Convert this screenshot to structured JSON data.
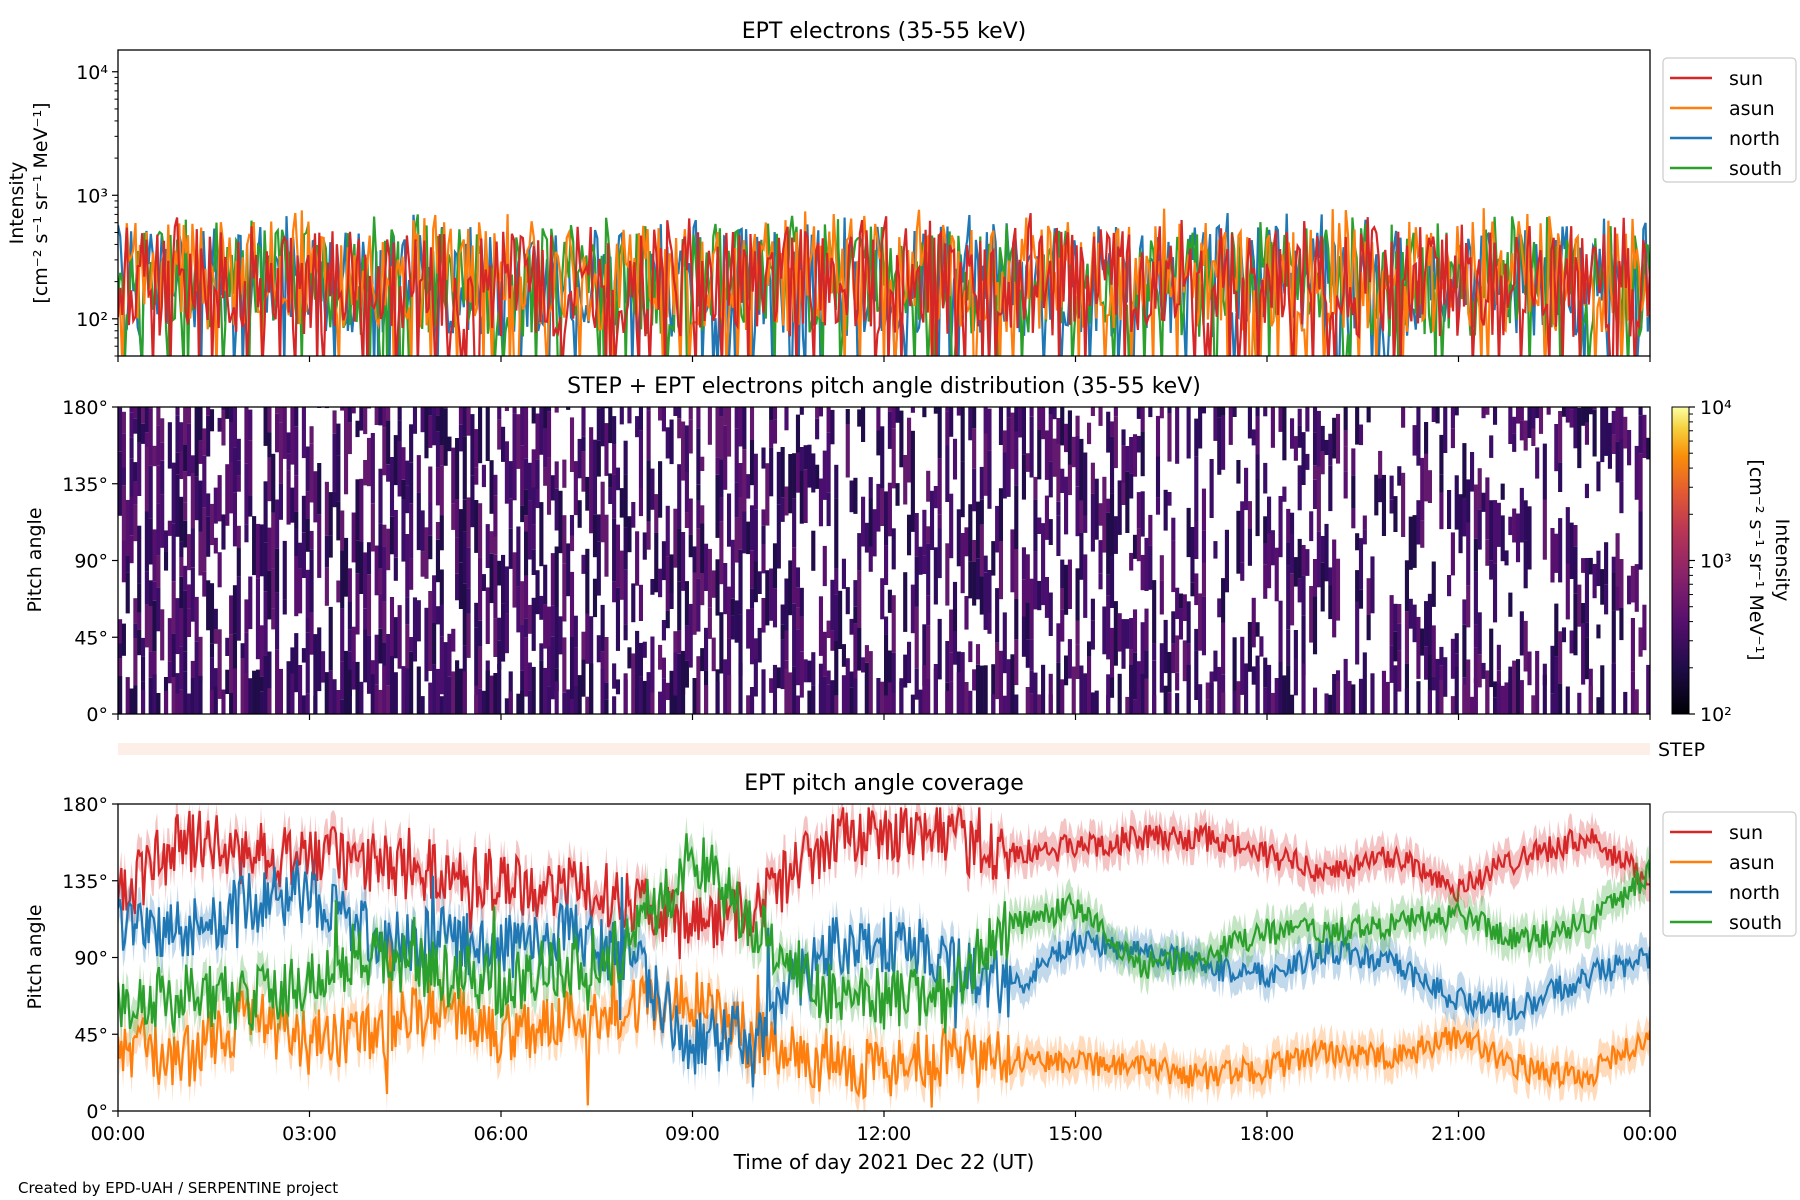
{
  "colors": {
    "sun": "#d62728",
    "asun": "#ff7f0e",
    "north": "#1f77b4",
    "south": "#2ca02c",
    "step_band": "#fdeee8"
  },
  "chart_data": [
    {
      "type": "line",
      "title": "EPT electrons (35-55 keV)",
      "ylabel_line1": "Intensity",
      "ylabel_line2": "[cm⁻² s⁻¹ sr⁻¹ MeV⁻¹]",
      "yscale": "log",
      "ylim": [
        50,
        15000
      ],
      "yticks": [
        "10²",
        "10³",
        "10⁴"
      ],
      "legend": [
        "sun",
        "asun",
        "north",
        "south"
      ],
      "legend_position": "upper right outside",
      "series": [
        {
          "name": "sun",
          "typical": 200,
          "max": 1000
        },
        {
          "name": "asun",
          "typical": 220,
          "max": 700
        },
        {
          "name": "north",
          "typical": 200,
          "max": 900
        },
        {
          "name": "south",
          "typical": 200,
          "max": 800
        }
      ],
      "grid": false
    },
    {
      "type": "heatmap",
      "title": "STEP + EPT electrons pitch angle distribution (35-55 keV)",
      "ylabel": "Pitch angle",
      "yticks": [
        "0°",
        "45°",
        "90°",
        "135°",
        "180°"
      ],
      "ylim": [
        0,
        180
      ],
      "colorbar": {
        "label_line1": "Intensity",
        "label_line2": "[cm⁻² s⁻¹ sr⁻¹ MeV⁻¹]",
        "ticks": [
          "10²",
          "10³",
          "10⁴"
        ],
        "range": [
          100,
          10000
        ],
        "scale": "log",
        "colormap": "inferno"
      },
      "typical_intensity": 250
    },
    {
      "type": "band",
      "label": "STEP"
    },
    {
      "type": "line",
      "title": "EPT pitch angle coverage",
      "ylabel": "Pitch angle",
      "yticks": [
        "0°",
        "45°",
        "90°",
        "135°",
        "180°"
      ],
      "ylim": [
        0,
        180
      ],
      "legend": [
        "sun",
        "asun",
        "north",
        "south"
      ],
      "legend_position": "upper right outside",
      "xticks": [
        "00:00",
        "03:00",
        "06:00",
        "09:00",
        "12:00",
        "15:00",
        "18:00",
        "21:00",
        "00:00"
      ],
      "xlabel": "Time of day 2021 Dec 22 (UT)",
      "series": [
        {
          "name": "sun",
          "x_hours": [
            0,
            1,
            2,
            3,
            4,
            5,
            6,
            7,
            8,
            9,
            10,
            11,
            12,
            13,
            14,
            15,
            16,
            17,
            18,
            19,
            20,
            21,
            22,
            23,
            24
          ],
          "values": [
            125,
            160,
            150,
            150,
            145,
            140,
            135,
            130,
            125,
            110,
            120,
            155,
            165,
            160,
            150,
            155,
            160,
            160,
            150,
            140,
            150,
            130,
            150,
            160,
            135
          ]
        },
        {
          "name": "asun",
          "x_hours": [
            0,
            1,
            2,
            3,
            4,
            5,
            6,
            7,
            8,
            9,
            10,
            11,
            12,
            13,
            14,
            15,
            16,
            17,
            18,
            19,
            20,
            21,
            22,
            23,
            24
          ],
          "values": [
            40,
            30,
            55,
            40,
            45,
            60,
            45,
            55,
            60,
            65,
            40,
            30,
            25,
            30,
            30,
            30,
            25,
            20,
            25,
            35,
            30,
            45,
            25,
            20,
            45
          ]
        },
        {
          "name": "north",
          "x_hours": [
            0,
            1,
            2,
            3,
            4,
            5,
            6,
            7,
            8,
            9,
            10,
            11,
            12,
            13,
            14,
            15,
            16,
            17,
            18,
            19,
            20,
            21,
            22,
            23,
            24
          ],
          "values": [
            110,
            105,
            120,
            130,
            100,
            100,
            95,
            105,
            90,
            40,
            45,
            95,
            100,
            90,
            70,
            100,
            95,
            85,
            80,
            95,
            85,
            65,
            60,
            80,
            90
          ]
        },
        {
          "name": "south",
          "x_hours": [
            0,
            1,
            2,
            3,
            4,
            5,
            6,
            7,
            8,
            9,
            10,
            11,
            12,
            13,
            14,
            15,
            16,
            17,
            18,
            19,
            20,
            21,
            22,
            23,
            24
          ],
          "values": [
            60,
            70,
            65,
            75,
            90,
            80,
            75,
            85,
            95,
            150,
            110,
            70,
            65,
            70,
            110,
            120,
            85,
            90,
            105,
            105,
            110,
            115,
            100,
            110,
            140
          ]
        }
      ],
      "grid": false
    }
  ],
  "footer": "Created by EPD-UAH / SERPENTINE project"
}
